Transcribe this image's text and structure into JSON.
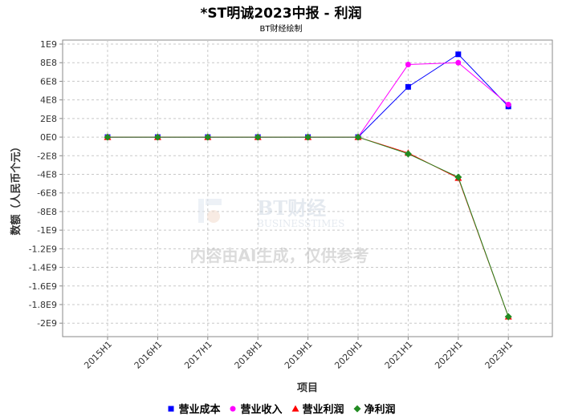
{
  "chart_data": {
    "type": "line",
    "title": "*ST明诚2023中报 - 利润",
    "subtitle": "BT财经绘制",
    "xlabel": "项目",
    "ylabel": "数额（人民币个元）",
    "categories": [
      "2015H1",
      "2016H1",
      "2017H1",
      "2018H1",
      "2019H1",
      "2020H1",
      "2021H1",
      "2022H1",
      "2023H1"
    ],
    "y_ticks": [
      "1E9",
      "8E8",
      "6E8",
      "4E8",
      "2E8",
      "0E0",
      "-2E8",
      "-4E8",
      "-6E8",
      "-8E8",
      "-1E9",
      "-1.2E9",
      "-1.4E9",
      "-1.6E9",
      "-1.8E9",
      "-2E9"
    ],
    "ylim": [
      -2050000000,
      1000000000
    ],
    "grid": true,
    "legend_position": "bottom",
    "series": [
      {
        "name": "营业成本",
        "color": "#0000ff",
        "marker": "square",
        "values": [
          0,
          0,
          0,
          0,
          0,
          0,
          540000000,
          890000000,
          330000000
        ]
      },
      {
        "name": "营业收入",
        "color": "#ff00ff",
        "marker": "circle",
        "values": [
          0,
          0,
          0,
          0,
          0,
          0,
          780000000,
          800000000,
          350000000
        ]
      },
      {
        "name": "营业利润",
        "color": "#ff0000",
        "marker": "triangle",
        "values": [
          0,
          0,
          0,
          0,
          0,
          0,
          -170000000,
          -440000000,
          -1930000000
        ]
      },
      {
        "name": "净利润",
        "color": "#228b22",
        "marker": "diamond",
        "values": [
          0,
          0,
          0,
          0,
          0,
          0,
          -180000000,
          -430000000,
          -1930000000
        ]
      }
    ]
  },
  "watermark": {
    "logo_text": "BT财经",
    "logo_sub": "BUSINESSTIMES",
    "notice": "内容由AI生成，仅供参考"
  }
}
